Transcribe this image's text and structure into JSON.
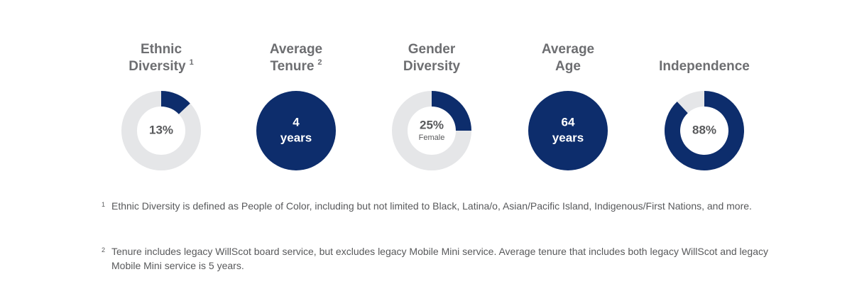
{
  "stats": [
    {
      "title": [
        "Ethnic",
        "Diversity"
      ],
      "footnote_ref": "1",
      "value": 13,
      "value_label": [
        "13%"
      ]
    },
    {
      "title": [
        "Average",
        "Tenure"
      ],
      "footnote_ref": "2",
      "value_label": [
        "4",
        "years"
      ]
    },
    {
      "title": [
        "Gender",
        "Diversity"
      ],
      "value": 25,
      "value_label": [
        "25%"
      ],
      "sublabel": "Female"
    },
    {
      "title": [
        "Average",
        "Age"
      ],
      "value_label": [
        "64",
        "years"
      ]
    },
    {
      "title": [
        "Independence"
      ],
      "value": 88,
      "value_label": [
        "88%"
      ]
    }
  ],
  "footnotes": [
    {
      "marker": "1",
      "text": "Ethnic Diversity is defined as People of Color, including but not limited to Black, Latina/o, Asian/Pacific Island, Indigenous/First Nations, and more."
    },
    {
      "marker": "2",
      "text": "Tenure includes legacy WillScot board service, but excludes legacy Mobile Mini service. Average tenure that includes both legacy WillScot and legacy Mobile Mini service is 5 years."
    }
  ]
}
